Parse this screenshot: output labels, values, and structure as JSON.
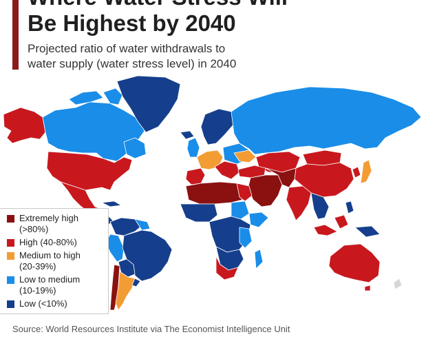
{
  "header": {
    "title_line1": "Where Water Stress Will",
    "title_line2": "Be Highest by 2040",
    "subtitle_line1": "Projected ratio of water withdrawals to",
    "subtitle_line2": "water supply (water stress level) in 2040"
  },
  "colors": {
    "accent": "#8b1a1a",
    "extremely_high": "#8b1111",
    "high": "#c8181e",
    "medium_to_high": "#f39c34",
    "low_to_medium": "#1a8de8",
    "low": "#153f8c",
    "no_data": "#d6d6d6",
    "ocean": "#ffffff",
    "border": "#ffffff"
  },
  "legend": {
    "items": [
      {
        "line1": "Extremely high",
        "line2": "(>80%)",
        "color": "#8b1111"
      },
      {
        "line1": "High (40-80%)",
        "line2": "",
        "color": "#c8181e"
      },
      {
        "line1": "Medium to high",
        "line2": "(20-39%)",
        "color": "#f39c34"
      },
      {
        "line1": "Low to medium",
        "line2": "(10-19%)",
        "color": "#1a8de8"
      },
      {
        "line1": "Low (<10%)",
        "line2": "",
        "color": "#153f8c"
      }
    ]
  },
  "source": "Source: World Resources Institute via The Economist Intelligence Unit"
}
